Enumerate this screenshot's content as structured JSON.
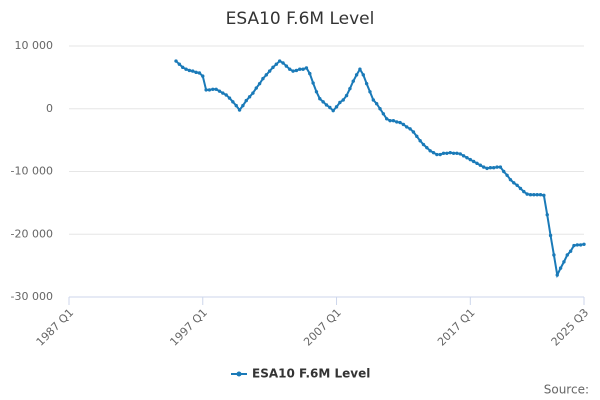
{
  "chart_data": {
    "type": "line",
    "title": "ESA10 F.6M Level",
    "source": "Source:",
    "categories": [
      "1987 Q1",
      null,
      null,
      null,
      null,
      null,
      null,
      null,
      null,
      null,
      null,
      null,
      null,
      null,
      null,
      null,
      null,
      null,
      null,
      null,
      null,
      null,
      null,
      null,
      null,
      null,
      null,
      null,
      null,
      null,
      null,
      null,
      null,
      null,
      null,
      null,
      null,
      null,
      null,
      null,
      "1997 Q1",
      null,
      null,
      null,
      null,
      null,
      null,
      null,
      null,
      null,
      null,
      null,
      null,
      null,
      null,
      null,
      null,
      null,
      null,
      null,
      null,
      null,
      null,
      null,
      null,
      null,
      null,
      null,
      null,
      null,
      null,
      null,
      null,
      null,
      null,
      null,
      null,
      null,
      null,
      null,
      "2007 Q1",
      null,
      null,
      null,
      null,
      null,
      null,
      null,
      null,
      null,
      null,
      null,
      null,
      null,
      null,
      null,
      null,
      null,
      null,
      null,
      null,
      null,
      null,
      null,
      null,
      null,
      null,
      null,
      null,
      null,
      null,
      null,
      null,
      null,
      null,
      null,
      null,
      null,
      null,
      null,
      "2017 Q1",
      null,
      null,
      null,
      null,
      null,
      null,
      null,
      null,
      null,
      null,
      null,
      null,
      null,
      null,
      null,
      null,
      null,
      null,
      null,
      null,
      null,
      null,
      null,
      null,
      null,
      null,
      null,
      null,
      null,
      null,
      null,
      null,
      null,
      "2025 Q3"
    ],
    "series": [
      {
        "name": "ESA10 F.6M Level",
        "color": "#1a7ab8",
        "values": [
          null,
          null,
          null,
          null,
          null,
          null,
          null,
          null,
          null,
          null,
          null,
          null,
          null,
          null,
          null,
          null,
          null,
          null,
          null,
          null,
          null,
          null,
          null,
          null,
          null,
          null,
          null,
          null,
          null,
          null,
          null,
          null,
          7600,
          7100,
          6600,
          6300,
          6100,
          6000,
          5800,
          5700,
          5200,
          3000,
          3000,
          3100,
          3100,
          2800,
          2500,
          2200,
          1700,
          1100,
          500,
          -200,
          500,
          1300,
          1900,
          2500,
          3300,
          4000,
          4800,
          5400,
          6000,
          6600,
          7100,
          7600,
          7300,
          6800,
          6300,
          6000,
          6100,
          6300,
          6300,
          6500,
          5600,
          4100,
          2700,
          1600,
          1100,
          600,
          200,
          -300,
          300,
          1000,
          1400,
          2100,
          3200,
          4400,
          5400,
          6300,
          5400,
          4000,
          2700,
          1400,
          800,
          0,
          -800,
          -1600,
          -1900,
          -1900,
          -2100,
          -2200,
          -2500,
          -2900,
          -3200,
          -3700,
          -4400,
          -5100,
          -5700,
          -6200,
          -6700,
          -7000,
          -7300,
          -7300,
          -7100,
          -7100,
          -7000,
          -7100,
          -7100,
          -7200,
          -7500,
          -7800,
          -8100,
          -8400,
          -8700,
          -9000,
          -9300,
          -9500,
          -9400,
          -9400,
          -9300,
          -9300,
          -10000,
          -10600,
          -11300,
          -11800,
          -12200,
          -12700,
          -13200,
          -13600,
          -13700,
          -13700,
          -13700,
          -13700,
          -13800,
          -16900,
          -20200,
          -23300,
          -26500,
          -25400,
          -24400,
          -23300,
          -22700,
          -21800,
          -21700,
          -21700,
          -21600
        ]
      }
    ],
    "ylim": [
      -30000,
      10000
    ],
    "yticks": [
      {
        "value": -30000,
        "label": "-30 000"
      },
      {
        "value": -20000,
        "label": "-20 000"
      },
      {
        "value": -10000,
        "label": "-10 000"
      },
      0,
      {
        "value": 10000,
        "label": "10 000"
      }
    ],
    "grid": true,
    "legend": "bottom"
  }
}
